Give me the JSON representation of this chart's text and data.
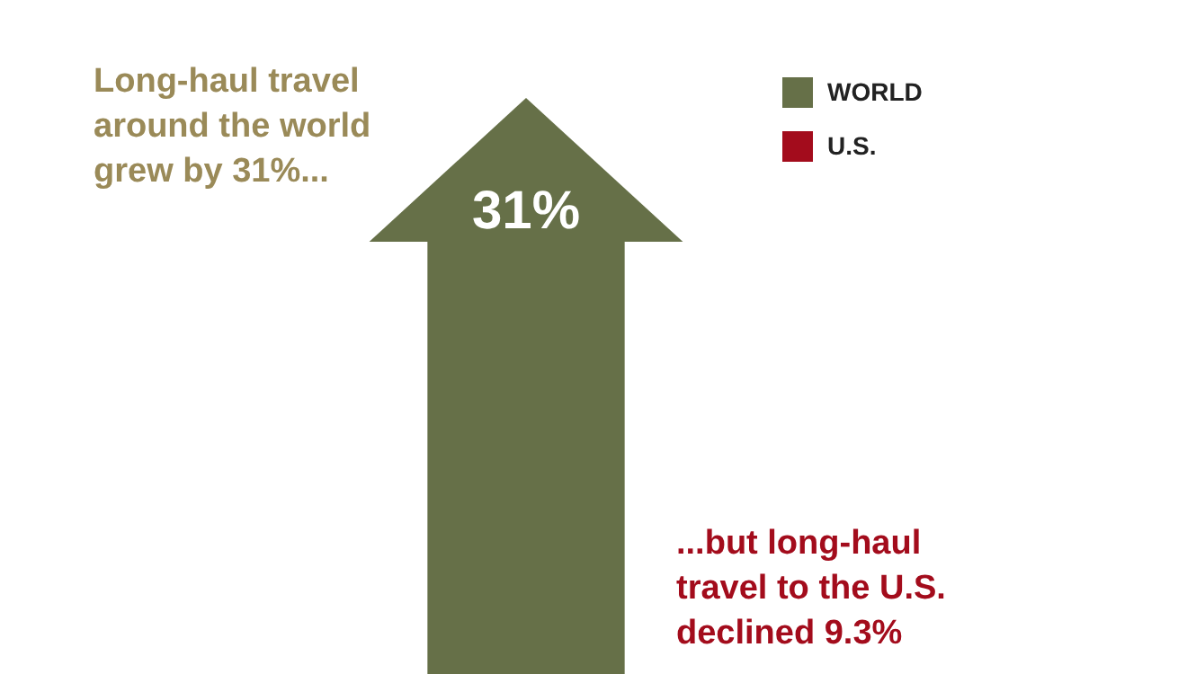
{
  "chart_data": {
    "type": "bar",
    "categories": [
      null
    ],
    "series": [
      {
        "name": "WORLD",
        "color": "#667048",
        "values": [
          31
        ],
        "value_labels": [
          "31%"
        ]
      },
      {
        "name": "U.S.",
        "color": "#a30c1c",
        "values": [
          null
        ]
      }
    ],
    "legend": "top right",
    "tick_labels": false,
    "annotations": [
      "Long-haul travel around the world grew by 31%...",
      "...but long-haul travel to the U.S. declined 9.3%"
    ]
  }
}
